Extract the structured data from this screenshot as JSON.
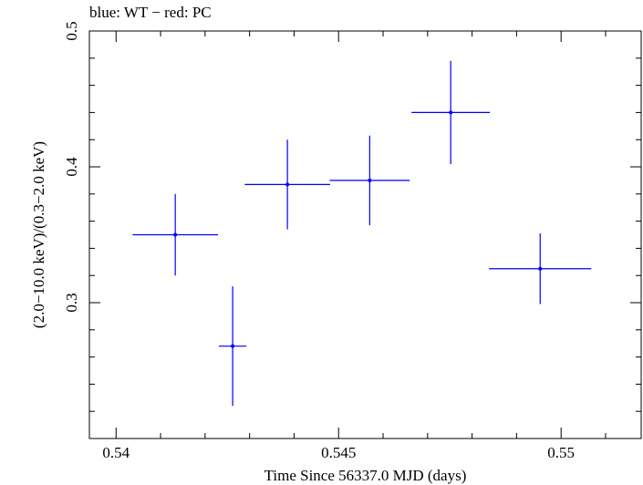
{
  "chart_data": {
    "type": "scatter",
    "title": "blue: WT − red: PC",
    "xlabel": "Time Since 56337.0 MJD (days)",
    "ylabel": "(2.0−10.0 keV)/(0.3−2.0 keV)",
    "xlim": [
      0.5394,
      0.5518
    ],
    "ylim": [
      0.2,
      0.5
    ],
    "x_ticks": [
      {
        "value": 0.54,
        "label": "0.54"
      },
      {
        "value": 0.545,
        "label": "0.545"
      },
      {
        "value": 0.55,
        "label": "0.55"
      }
    ],
    "y_ticks": [
      {
        "value": 0.3,
        "label": "0.3"
      },
      {
        "value": 0.4,
        "label": "0.4"
      },
      {
        "value": 0.5,
        "label": "0.5"
      }
    ],
    "grid": false,
    "series": [
      {
        "name": "WT",
        "color": "#0000ff",
        "points": [
          {
            "x": 0.54133,
            "y": 0.35,
            "xerr": 0.00096,
            "yerr": 0.03
          },
          {
            "x": 0.54262,
            "y": 0.268,
            "xerr": 0.00031,
            "yerr": 0.044
          },
          {
            "x": 0.54385,
            "y": 0.387,
            "xerr": 0.00096,
            "yerr": 0.033
          },
          {
            "x": 0.5457,
            "y": 0.39,
            "xerr": 0.0009,
            "yerr": 0.033
          },
          {
            "x": 0.54752,
            "y": 0.44,
            "xerr": 0.00088,
            "yerr": 0.038
          },
          {
            "x": 0.54953,
            "y": 0.325,
            "xerr": 0.00115,
            "yerr": 0.026
          }
        ]
      }
    ]
  }
}
